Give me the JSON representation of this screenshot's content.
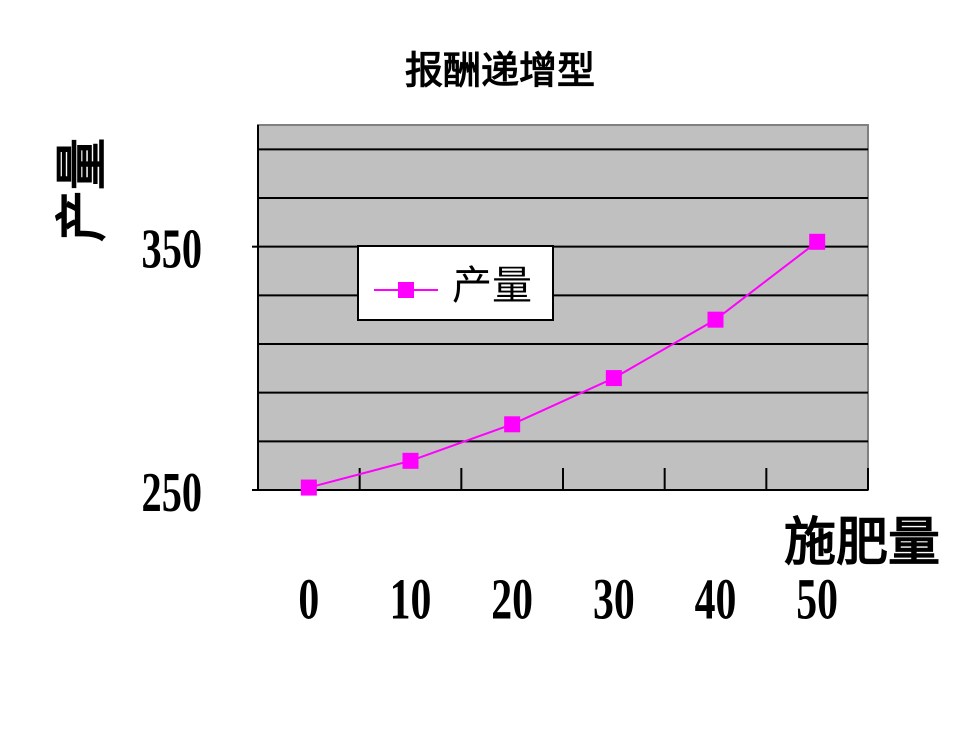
{
  "chart_data": {
    "type": "line",
    "title": "报酬递增型",
    "y_label": "产量",
    "x_label": "施肥量",
    "categories": [
      "0",
      "10",
      "20",
      "30",
      "40",
      "50"
    ],
    "series": [
      {
        "name": "产量",
        "color": "#ff00ff",
        "values": [
          251,
          262,
          277,
          296,
          320,
          352
        ]
      }
    ],
    "ylim": [
      250,
      400
    ],
    "yticks": [
      250,
      350
    ],
    "gridlines": [
      270,
      290,
      310,
      330,
      350,
      370,
      390
    ],
    "grid": true,
    "legend": "upper left",
    "plot_background": "#c0c0c0"
  }
}
